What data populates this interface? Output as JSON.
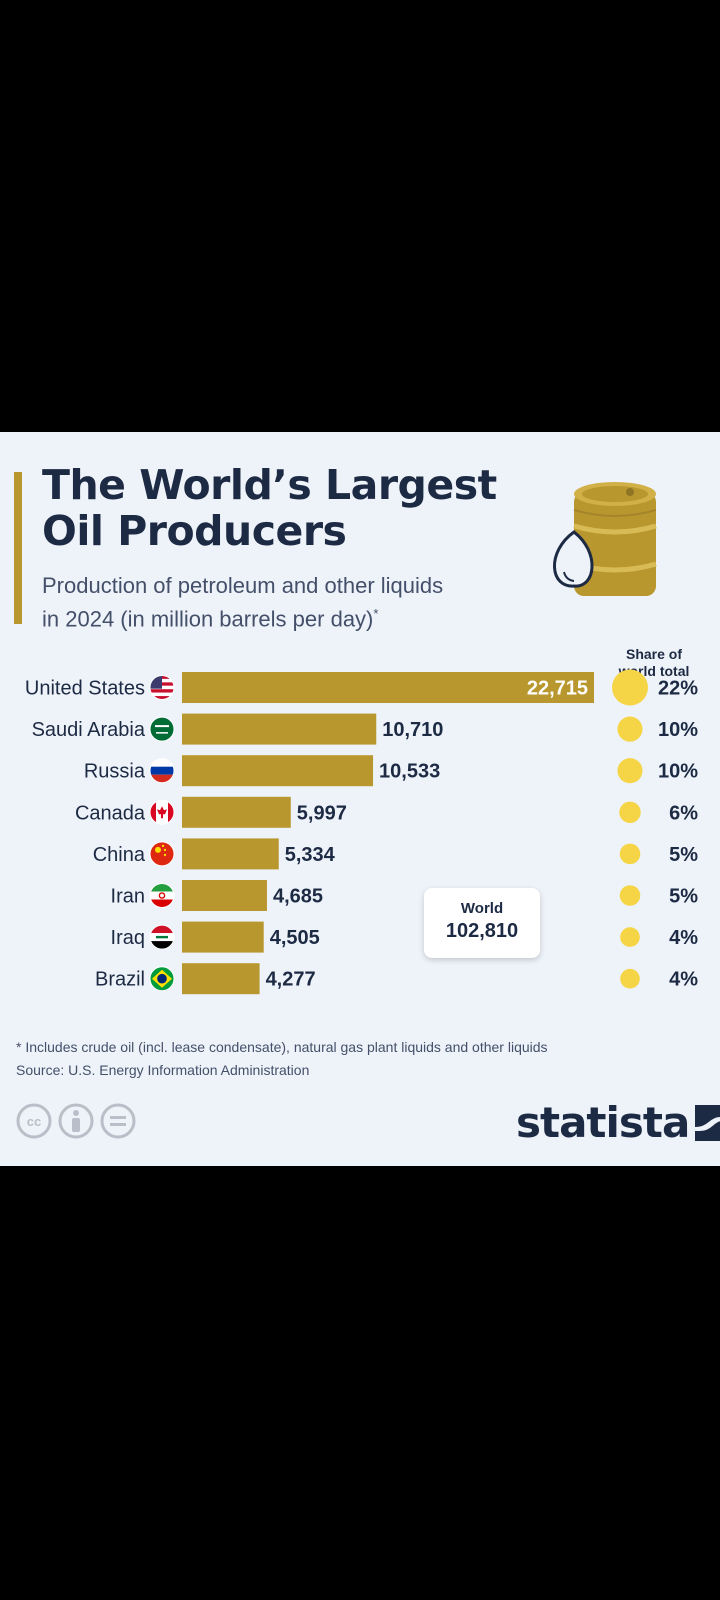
{
  "title_line1": "The World’s Largest",
  "title_line2": "Oil Producers",
  "subtitle_line1": "Production of petroleum and other liquids",
  "subtitle_line2": "in 2024 (in million barrels per day)",
  "subtitle_asterisk": "*",
  "share_header_line1": "Share of",
  "share_header_line2": "world total",
  "world_label": "World",
  "world_value": "102,810",
  "footnote": "* Includes crude oil (incl. lease condensate), natural gas plant liquids and other liquids",
  "source": "Source: U.S. Energy Information Administration",
  "brand": "statista",
  "colors": {
    "bar": "#b9972f",
    "dot": "#f5d545",
    "background": "#eef3f9",
    "text": "#1d2a44"
  },
  "chart_data": {
    "type": "bar",
    "orientation": "horizontal",
    "title": "The World’s Largest Oil Producers",
    "subtitle": "Production of petroleum and other liquids in 2024 (in million barrels per day)*",
    "categories": [
      "United States",
      "Saudi Arabia",
      "Russia",
      "Canada",
      "China",
      "Iran",
      "Iraq",
      "Brazil"
    ],
    "values": [
      22715,
      10710,
      10533,
      5997,
      5334,
      4685,
      4505,
      4277
    ],
    "labels": [
      "22,715",
      "10,710",
      "10,533",
      "5,997",
      "5,334",
      "4,685",
      "4,505",
      "4,277"
    ],
    "share_values": [
      22,
      10,
      10,
      6,
      5,
      5,
      4,
      4
    ],
    "share_labels": [
      "22%",
      "10%",
      "10%",
      "6%",
      "5%",
      "5%",
      "4%",
      "4%"
    ],
    "flag_icons": [
      "us-flag-icon",
      "saudi-arabia-flag-icon",
      "russia-flag-icon",
      "canada-flag-icon",
      "china-flag-icon",
      "iran-flag-icon",
      "iraq-flag-icon",
      "brazil-flag-icon"
    ],
    "xlim": [
      0,
      22715
    ],
    "grid": false,
    "legend": "none"
  }
}
